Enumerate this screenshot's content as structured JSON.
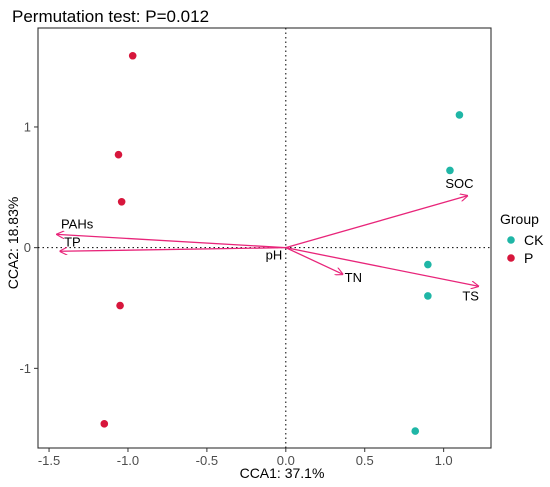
{
  "chart_data": {
    "type": "scatter",
    "title": "Permutation test: P=0.012",
    "xlabel": "CCA1: 37.1%",
    "ylabel": "CCA2: 18.83%",
    "xlim": [
      -1.57,
      1.3
    ],
    "ylim": [
      -1.66,
      1.82
    ],
    "xticks": [
      -1.5,
      -1.0,
      -0.5,
      0.0,
      0.5,
      1.0
    ],
    "xtick_labels": [
      "-1.5",
      "-1.0",
      "-0.5",
      "0.0",
      "0.5",
      "1.0"
    ],
    "yticks": [
      -1,
      0,
      1
    ],
    "ytick_labels": [
      "-1",
      "0",
      "1"
    ],
    "grid": false,
    "reference_lines": {
      "x": 0,
      "y": 0,
      "style": "dotted"
    },
    "legend": {
      "title": "Group",
      "position": "right",
      "entries": [
        {
          "label": "CK",
          "color": "#1fb6a6"
        },
        {
          "label": "P",
          "color": "#d7163c"
        }
      ]
    },
    "series": [
      {
        "name": "CK",
        "color": "#1fb6a6",
        "points": [
          {
            "x": 1.1,
            "y": 1.1
          },
          {
            "x": 1.04,
            "y": 0.64
          },
          {
            "x": 0.9,
            "y": -0.14
          },
          {
            "x": 0.9,
            "y": -0.4
          },
          {
            "x": 0.82,
            "y": -1.52
          }
        ]
      },
      {
        "name": "P",
        "color": "#d7163c",
        "points": [
          {
            "x": -0.97,
            "y": 1.59
          },
          {
            "x": -1.06,
            "y": 0.77
          },
          {
            "x": -1.04,
            "y": 0.38
          },
          {
            "x": -1.05,
            "y": -0.48
          },
          {
            "x": -1.15,
            "y": -1.46
          }
        ]
      }
    ],
    "arrows": {
      "color": "#e8257a",
      "items": [
        {
          "label": "SOC",
          "x": 1.15,
          "y": 0.43
        },
        {
          "label": "PAHs",
          "x": -1.45,
          "y": 0.11
        },
        {
          "label": "TP",
          "x": -1.43,
          "y": -0.03
        },
        {
          "label": "TN",
          "x": 0.36,
          "y": -0.22
        },
        {
          "label": "TS",
          "x": 1.22,
          "y": -0.32
        },
        {
          "label": "pH",
          "x": -0.02,
          "y": 0.0
        }
      ]
    }
  }
}
